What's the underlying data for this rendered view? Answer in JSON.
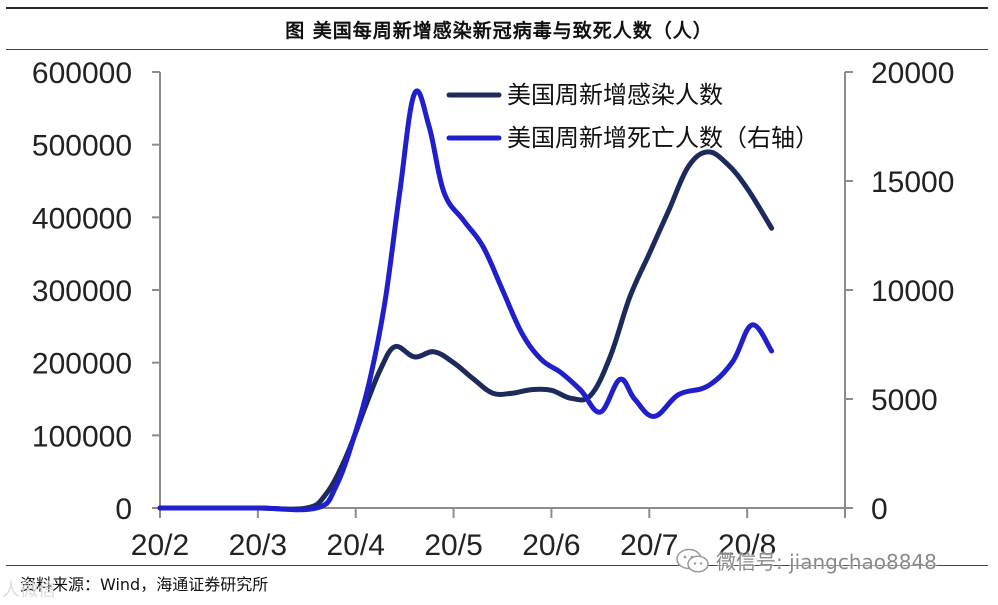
{
  "title": "图  美国每周新增感染新冠病毒与致死人数（人）",
  "source": "资料来源：Wind，海通证券研究所",
  "watermark": {
    "left": "人微信",
    "right": "微信号: jiangchao8848",
    "icon": "wechat-icon"
  },
  "colors": {
    "series_infection": "#1c2b5c",
    "series_death": "#1f1fcc",
    "axis": "#8c8c8c"
  },
  "chart_data": {
    "type": "line",
    "title": "图  美国每周新增感染新冠病毒与致死人数（人）",
    "x_ticks": [
      "20/2",
      "20/3",
      "20/4",
      "20/5",
      "20/6",
      "20/7",
      "20/8"
    ],
    "y_left": {
      "min": 0,
      "max": 600000,
      "ticks": [
        "0",
        "100000",
        "200000",
        "300000",
        "400000",
        "500000",
        "600000"
      ]
    },
    "y_right": {
      "min": 0,
      "max": 20000,
      "ticks": [
        "0",
        "5000",
        "10000",
        "15000",
        "20000"
      ]
    },
    "legend_position": "top-right",
    "grid": false,
    "series": [
      {
        "name": "美国周新增感染人数",
        "axis": "left",
        "color": "#1c2b5c",
        "points": [
          [
            0.0,
            0
          ],
          [
            0.5,
            0
          ],
          [
            1.0,
            0
          ],
          [
            1.5,
            0
          ],
          [
            1.7,
            20000
          ],
          [
            1.9,
            70000
          ],
          [
            2.1,
            140000
          ],
          [
            2.25,
            190000
          ],
          [
            2.4,
            222000
          ],
          [
            2.6,
            208000
          ],
          [
            2.8,
            215000
          ],
          [
            3.0,
            200000
          ],
          [
            3.2,
            178000
          ],
          [
            3.4,
            158000
          ],
          [
            3.6,
            158000
          ],
          [
            3.8,
            163000
          ],
          [
            4.0,
            162000
          ],
          [
            4.2,
            151000
          ],
          [
            4.4,
            155000
          ],
          [
            4.6,
            208000
          ],
          [
            4.8,
            290000
          ],
          [
            5.0,
            350000
          ],
          [
            5.2,
            410000
          ],
          [
            5.4,
            470000
          ],
          [
            5.6,
            490000
          ],
          [
            5.8,
            473000
          ],
          [
            6.0,
            440000
          ],
          [
            6.25,
            385000
          ]
        ]
      },
      {
        "name": "美国周新增死亡人数（右轴）",
        "axis": "right",
        "color": "#1f1fcc",
        "points": [
          [
            0.0,
            0
          ],
          [
            0.5,
            0
          ],
          [
            1.0,
            0
          ],
          [
            1.6,
            0
          ],
          [
            1.8,
            1000
          ],
          [
            2.0,
            3500
          ],
          [
            2.15,
            6000
          ],
          [
            2.3,
            9500
          ],
          [
            2.45,
            14500
          ],
          [
            2.6,
            19000
          ],
          [
            2.75,
            17500
          ],
          [
            2.9,
            14500
          ],
          [
            3.1,
            13200
          ],
          [
            3.3,
            12000
          ],
          [
            3.5,
            10000
          ],
          [
            3.7,
            8000
          ],
          [
            3.9,
            6800
          ],
          [
            4.1,
            6200
          ],
          [
            4.3,
            5400
          ],
          [
            4.5,
            4400
          ],
          [
            4.7,
            5900
          ],
          [
            4.85,
            5000
          ],
          [
            5.05,
            4200
          ],
          [
            5.3,
            5200
          ],
          [
            5.6,
            5600
          ],
          [
            5.85,
            6700
          ],
          [
            6.05,
            8400
          ],
          [
            6.25,
            7200
          ]
        ]
      }
    ]
  }
}
